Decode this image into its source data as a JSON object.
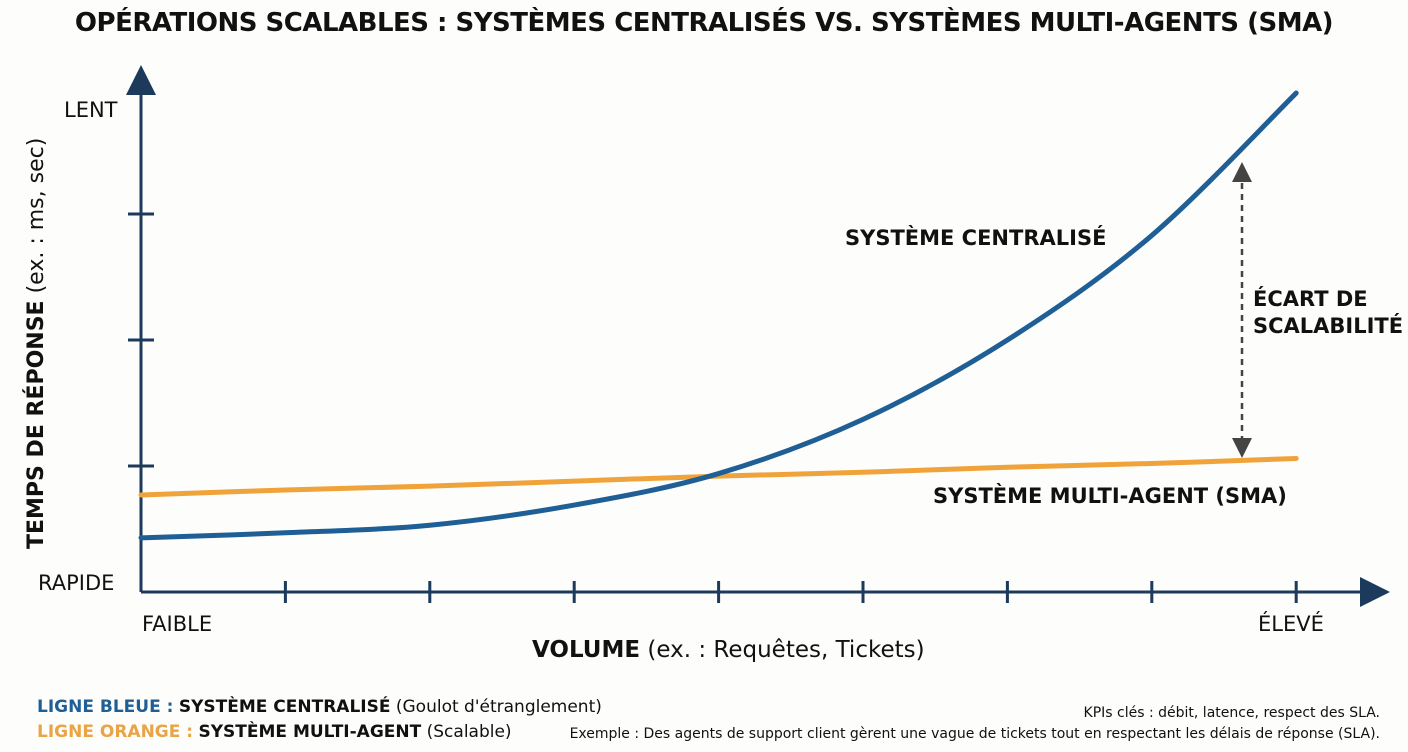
{
  "chart_data": {
    "type": "line",
    "title": "OPÉRATIONS SCALABLES : SYSTÈMES CENTRALISÉS VS. SYSTÈMES MULTI-AGENTS (SMA)",
    "xlabel_bold": "VOLUME",
    "xlabel_rest": "(ex. : Requêtes, Tickets)",
    "ylabel_bold": "TEMPS DE RÉPONSE",
    "ylabel_rest": "(ex. : ms, sec)",
    "x_tick_labels": {
      "low": "FAIBLE",
      "high": "ÉLEVÉ"
    },
    "y_tick_labels": {
      "low": "RAPIDE",
      "high": "LENT"
    },
    "xlim": [
      0,
      8.5
    ],
    "ylim": [
      0,
      4.1
    ],
    "grid": false,
    "x": [
      0,
      1,
      2,
      3,
      4,
      5,
      6,
      7,
      8
    ],
    "series": [
      {
        "name": "SYSTÈME CENTRALISÉ",
        "color": "#1f5f96",
        "values": [
          0.43,
          0.47,
          0.53,
          0.69,
          0.94,
          1.37,
          2.0,
          2.83,
          3.96
        ]
      },
      {
        "name": "SYSTÈME MULTI-AGENT (SMA)",
        "color": "#f0a33a",
        "values": [
          0.77,
          0.81,
          0.84,
          0.88,
          0.92,
          0.95,
          0.99,
          1.02,
          1.06
        ]
      }
    ],
    "annotations": {
      "gap_line1": "ÉCART DE",
      "gap_line2": "SCALABILITÉ"
    }
  },
  "legend": {
    "blue_prefix": "LIGNE BLEUE :",
    "blue_bold": "SYSTÈME CENTRALISÉ",
    "blue_rest": "(Goulot d'étranglement)",
    "orange_prefix": "LIGNE ORANGE :",
    "orange_bold": "SYSTÈME MULTI-AGENT",
    "orange_rest": "(Scalable)"
  },
  "notes": {
    "kpis": "KPIs clés : débit, latence, respect des SLA.",
    "example": "Exemple : Des agents de support client gèrent une vague de tickets tout en respectant les délais de réponse (SLA)."
  }
}
